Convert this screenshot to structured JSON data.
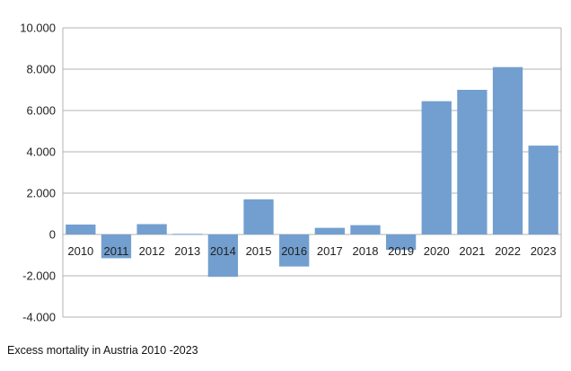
{
  "chart_data": {
    "type": "bar",
    "categories": [
      "2010",
      "2011",
      "2012",
      "2013",
      "2014",
      "2015",
      "2016",
      "2017",
      "2018",
      "2019",
      "2020",
      "2021",
      "2022",
      "2023"
    ],
    "values": [
      480,
      -1150,
      500,
      30,
      -2050,
      1700,
      -1550,
      320,
      450,
      -750,
      6450,
      7000,
      8100,
      4300
    ],
    "ylim": [
      -4000,
      10000
    ],
    "yticks": [
      -4000,
      -2000,
      0,
      2000,
      4000,
      6000,
      8000,
      10000
    ],
    "ytick_labels": [
      "-4.000",
      "-2.000",
      "0",
      "2.000",
      "4.000",
      "6.000",
      "8.000",
      "10.000"
    ],
    "grid": "horizontal",
    "bar_color": "#729fcf",
    "grid_color": "#b3b3b3",
    "title": "",
    "xlabel": "",
    "ylabel": ""
  },
  "caption": "Excess mortality in Austria 2010 -2023"
}
